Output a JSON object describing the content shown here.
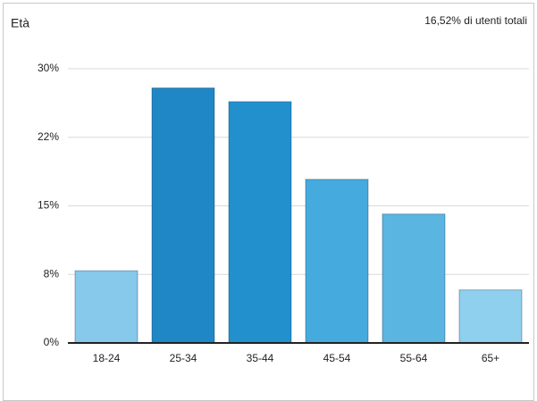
{
  "chart_data": {
    "type": "bar",
    "title": "Età",
    "subtitle": "16,52% di utenti totali",
    "categories": [
      "18-24",
      "25-34",
      "35-44",
      "45-54",
      "55-64",
      "65+"
    ],
    "values": [
      7.9,
      27.9,
      26.4,
      17.9,
      14.1,
      5.8
    ],
    "colors": [
      "#86c9ea",
      "#1f87c5",
      "#2290cc",
      "#45aade",
      "#5ab5e0",
      "#8fd0ef"
    ],
    "ylim": [
      0,
      30
    ],
    "yticks": [
      {
        "value": 0,
        "label": "0%"
      },
      {
        "value": 7.5,
        "label": "8%"
      },
      {
        "value": 15,
        "label": "15%"
      },
      {
        "value": 22.5,
        "label": "22%"
      },
      {
        "value": 30,
        "label": "30%"
      }
    ],
    "grid": true
  }
}
